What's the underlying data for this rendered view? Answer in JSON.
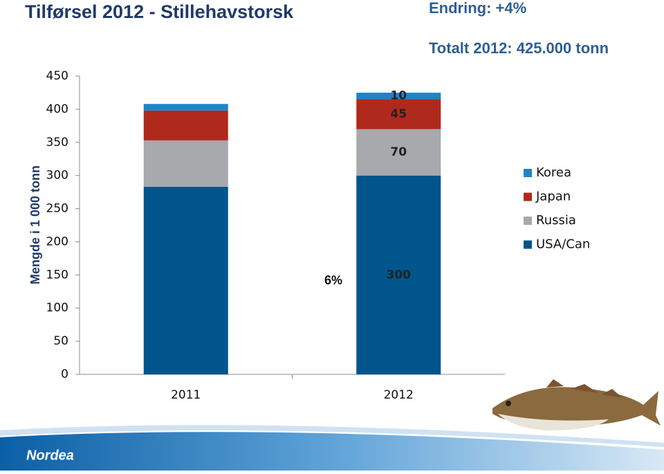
{
  "chart_data": {
    "type": "stacked-bar",
    "title": "Tilførsel 2012 - Stillehavstorsk",
    "subtitle": "Endring: +4%",
    "annotation": "Totalt 2012: 425.000 tonn",
    "growth_label": "6%",
    "y_label": "Mengde i 1 000 tonn",
    "categories": [
      "2011",
      "2012"
    ],
    "series": [
      {
        "name": "USA/Can",
        "color": "#00558c",
        "values": [
          283,
          300
        ]
      },
      {
        "name": "Russia",
        "color": "#a7a9ac",
        "values": [
          70,
          70
        ]
      },
      {
        "name": "Japan",
        "color": "#b0291d",
        "values": [
          45,
          45
        ]
      },
      {
        "name": "Korea",
        "color": "#1e84c6",
        "values": [
          10,
          10
        ]
      }
    ],
    "labeled_category": 1,
    "ylim": [
      0,
      450
    ],
    "yticks": [
      0,
      50,
      100,
      150,
      200,
      250,
      300,
      350,
      400,
      450
    ],
    "grid": false,
    "legend": "right"
  },
  "brand": "Nordea"
}
